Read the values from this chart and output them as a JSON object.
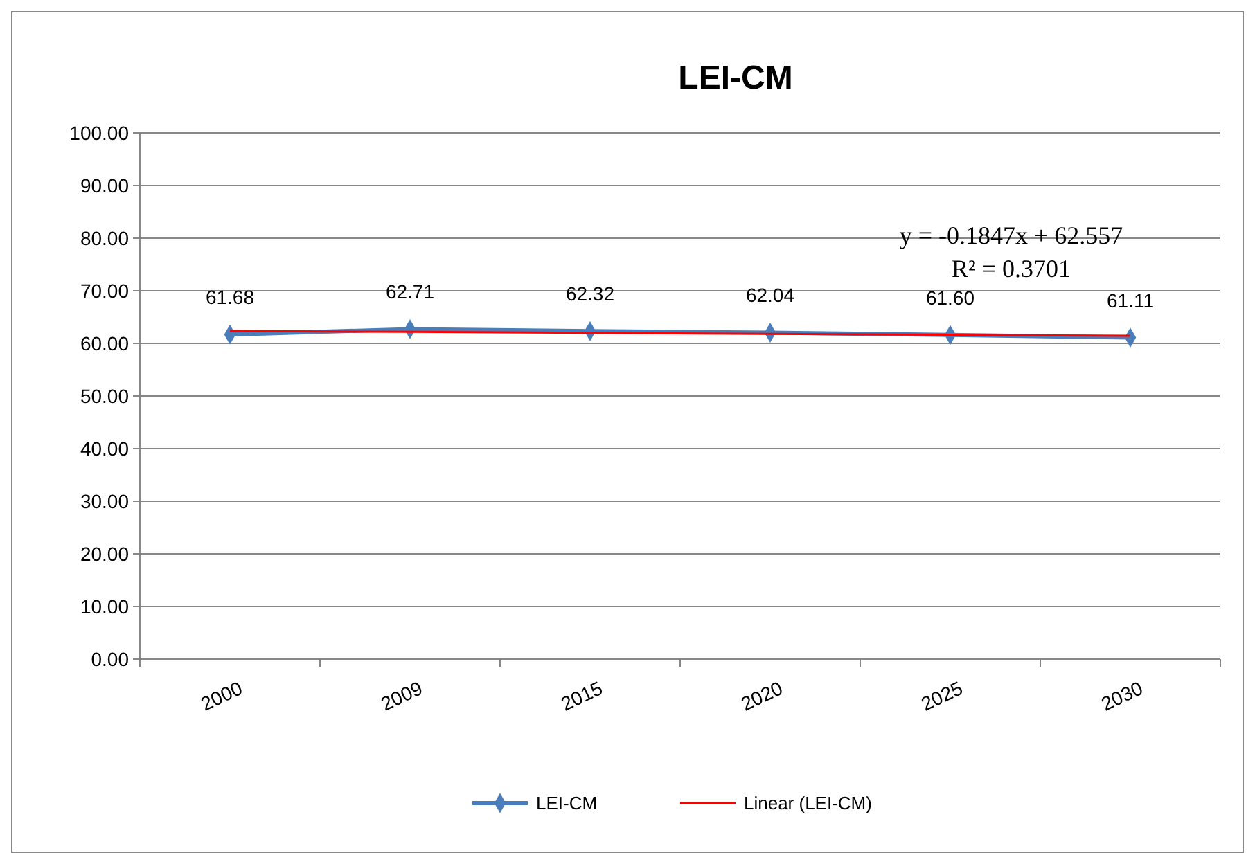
{
  "chart_data": {
    "type": "line",
    "title": "LEI-CM",
    "categories": [
      "2000",
      "2009",
      "2015",
      "2020",
      "2025",
      "2030"
    ],
    "ylim": [
      0,
      100
    ],
    "yticks": [
      {
        "value": 0,
        "label": "0.00"
      },
      {
        "value": 10,
        "label": "10.00"
      },
      {
        "value": 20,
        "label": "20.00"
      },
      {
        "value": 30,
        "label": "30.00"
      },
      {
        "value": 40,
        "label": "40.00"
      },
      {
        "value": 50,
        "label": "50.00"
      },
      {
        "value": 60,
        "label": "60.00"
      },
      {
        "value": 70,
        "label": "70.00"
      },
      {
        "value": 80,
        "label": "80.00"
      },
      {
        "value": 90,
        "label": "90.00"
      },
      {
        "value": 100,
        "label": "100.00"
      }
    ],
    "grid": "y",
    "legend": "bottom",
    "series": [
      {
        "name": "LEI-CM",
        "color": "#4a7ebb",
        "marker": "diamond",
        "values": [
          61.68,
          62.71,
          62.32,
          62.04,
          61.6,
          61.11
        ],
        "value_labels": [
          "61.68",
          "62.71",
          "62.32",
          "62.04",
          "61.60",
          "61.11"
        ]
      },
      {
        "name": "Linear (LEI-CM)",
        "color": "#ff0000",
        "marker": "none",
        "values": [
          62.37,
          62.19,
          62.0,
          61.82,
          61.63,
          61.45
        ]
      }
    ],
    "annotations": [
      "y = -0.1847x + 62.557",
      "R² = 0.3701"
    ]
  }
}
